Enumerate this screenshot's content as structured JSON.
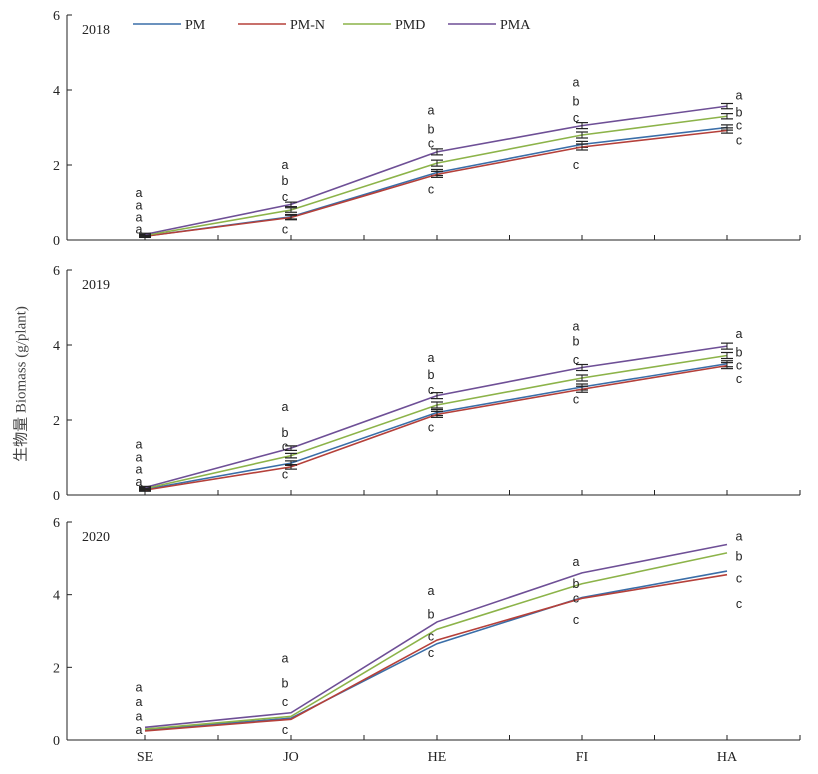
{
  "figure": {
    "ylabel": "生物量 Biomass (g/plant)"
  },
  "chart_data": [
    {
      "type": "line",
      "panel_label": "2018",
      "categories": [
        "SE",
        "JO",
        "HE",
        "FI",
        "HA"
      ],
      "ylim": [
        0,
        6
      ],
      "yticks": [
        0,
        2,
        4,
        6
      ],
      "legend": [
        {
          "name": "PM",
          "color": "#3a6ea8"
        },
        {
          "name": "PM-N",
          "color": "#b5403a"
        },
        {
          "name": "PMD",
          "color": "#8cb349"
        },
        {
          "name": "PMA",
          "color": "#6e4f96"
        }
      ],
      "legend_position": "top",
      "series": [
        {
          "name": "PM",
          "color": "#3a6ea8",
          "values": [
            0.1,
            0.62,
            1.8,
            2.55,
            3.0
          ],
          "errors": [
            0.03,
            0.06,
            0.08,
            0.08,
            0.07
          ]
        },
        {
          "name": "PM-N",
          "color": "#b5403a",
          "values": [
            0.1,
            0.6,
            1.75,
            2.48,
            2.92
          ],
          "errors": [
            0.03,
            0.06,
            0.08,
            0.08,
            0.07
          ]
        },
        {
          "name": "PMD",
          "color": "#8cb349",
          "values": [
            0.12,
            0.8,
            2.05,
            2.8,
            3.3
          ],
          "errors": [
            0.03,
            0.06,
            0.08,
            0.08,
            0.07
          ]
        },
        {
          "name": "PMA",
          "color": "#6e4f96",
          "values": [
            0.15,
            0.95,
            2.35,
            3.05,
            3.57
          ],
          "errors": [
            0.03,
            0.06,
            0.08,
            0.08,
            0.07
          ]
        }
      ],
      "significance": [
        {
          "category": "SE",
          "letters": [
            "a",
            "a",
            "a",
            "a"
          ],
          "y": [
            1.25,
            0.92,
            0.6,
            0.28
          ]
        },
        {
          "category": "JO",
          "letters": [
            "a",
            "b",
            "c",
            "c"
          ],
          "y": [
            2.0,
            1.58,
            1.15,
            0.28
          ]
        },
        {
          "category": "HE",
          "letters": [
            "a",
            "b",
            "c",
            "c"
          ],
          "y": [
            3.45,
            2.95,
            2.58,
            1.35
          ]
        },
        {
          "category": "FI",
          "letters": [
            "a",
            "b",
            "c",
            "c"
          ],
          "y": [
            4.2,
            3.7,
            3.25,
            2.0
          ]
        },
        {
          "category": "HA",
          "letters": [
            "a",
            "b",
            "c",
            "c"
          ],
          "y": [
            3.85,
            3.4,
            3.05,
            2.65
          ]
        }
      ]
    },
    {
      "type": "line",
      "panel_label": "2019",
      "categories": [
        "SE",
        "JO",
        "HE",
        "FI",
        "HA"
      ],
      "ylim": [
        0,
        6
      ],
      "yticks": [
        0,
        2,
        4,
        6
      ],
      "series": [
        {
          "name": "PM",
          "color": "#3a6ea8",
          "values": [
            0.15,
            0.85,
            2.2,
            2.88,
            3.5
          ],
          "errors": [
            0.03,
            0.06,
            0.08,
            0.08,
            0.08
          ]
        },
        {
          "name": "PM-N",
          "color": "#b5403a",
          "values": [
            0.13,
            0.75,
            2.15,
            2.82,
            3.45
          ],
          "errors": [
            0.03,
            0.06,
            0.08,
            0.08,
            0.08
          ]
        },
        {
          "name": "PMD",
          "color": "#8cb349",
          "values": [
            0.17,
            1.05,
            2.4,
            3.12,
            3.72
          ],
          "errors": [
            0.03,
            0.06,
            0.08,
            0.08,
            0.08
          ]
        },
        {
          "name": "PMA",
          "color": "#6e4f96",
          "values": [
            0.2,
            1.25,
            2.65,
            3.4,
            3.97
          ],
          "errors": [
            0.03,
            0.06,
            0.08,
            0.08,
            0.08
          ]
        }
      ],
      "significance": [
        {
          "category": "SE",
          "letters": [
            "a",
            "a",
            "a",
            "a"
          ],
          "y": [
            1.35,
            1.0,
            0.68,
            0.35
          ]
        },
        {
          "category": "JO",
          "letters": [
            "a",
            "b",
            "c",
            "c"
          ],
          "y": [
            2.35,
            1.65,
            1.3,
            0.55
          ]
        },
        {
          "category": "HE",
          "letters": [
            "a",
            "b",
            "c",
            "c"
          ],
          "y": [
            3.65,
            3.2,
            2.8,
            1.8
          ]
        },
        {
          "category": "FI",
          "letters": [
            "a",
            "b",
            "c",
            "c"
          ],
          "y": [
            4.5,
            4.1,
            3.6,
            2.55
          ]
        },
        {
          "category": "HA",
          "letters": [
            "a",
            "b",
            "c",
            "c"
          ],
          "y": [
            4.3,
            3.8,
            3.45,
            3.1
          ]
        }
      ]
    },
    {
      "type": "line",
      "panel_label": "2020",
      "categories": [
        "SE",
        "JO",
        "HE",
        "FI",
        "HA"
      ],
      "ylim": [
        0,
        6
      ],
      "yticks": [
        0,
        2,
        4,
        6
      ],
      "series": [
        {
          "name": "PM",
          "color": "#3a6ea8",
          "values": [
            0.28,
            0.6,
            2.65,
            3.92,
            4.65
          ],
          "errors": [
            0,
            0,
            0,
            0,
            0
          ]
        },
        {
          "name": "PM-N",
          "color": "#b5403a",
          "values": [
            0.25,
            0.57,
            2.75,
            3.9,
            4.55
          ],
          "errors": [
            0,
            0,
            0,
            0,
            0
          ]
        },
        {
          "name": "PMD",
          "color": "#8cb349",
          "values": [
            0.3,
            0.65,
            3.05,
            4.3,
            5.15
          ],
          "errors": [
            0,
            0,
            0,
            0,
            0
          ]
        },
        {
          "name": "PMA",
          "color": "#6e4f96",
          "values": [
            0.35,
            0.75,
            3.25,
            4.6,
            5.38
          ],
          "errors": [
            0,
            0,
            0,
            0,
            0
          ]
        }
      ],
      "significance": [
        {
          "category": "SE",
          "letters": [
            "a",
            "a",
            "a",
            "a"
          ],
          "y": [
            1.45,
            1.05,
            0.65,
            0.28
          ]
        },
        {
          "category": "JO",
          "letters": [
            "a",
            "b",
            "c",
            "c"
          ],
          "y": [
            2.25,
            1.55,
            1.05,
            0.28
          ]
        },
        {
          "category": "HE",
          "letters": [
            "a",
            "b",
            "c",
            "c"
          ],
          "y": [
            4.1,
            3.45,
            2.85,
            2.4
          ]
        },
        {
          "category": "FI",
          "letters": [
            "a",
            "b",
            "c",
            "c"
          ],
          "y": [
            4.9,
            4.3,
            3.9,
            3.3
          ]
        },
        {
          "category": "HA",
          "letters": [
            "a",
            "b",
            "c",
            "c"
          ],
          "y": [
            5.6,
            5.05,
            4.45,
            3.75
          ]
        }
      ]
    }
  ]
}
